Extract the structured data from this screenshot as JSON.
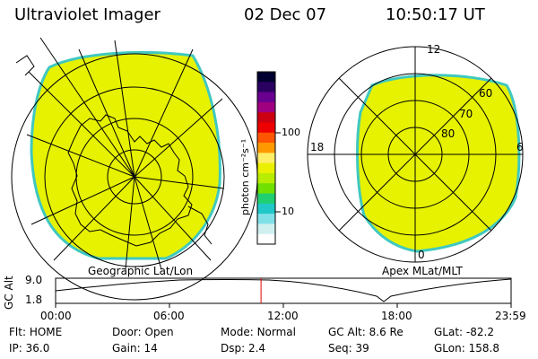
{
  "header": {
    "instrument": "Ultraviolet Imager",
    "date": "02 Dec 07",
    "time": "10:50:17 UT"
  },
  "left_panel": {
    "caption": "Geographic Lat/Lon"
  },
  "right_panel": {
    "caption": "Apex MLat/MLT",
    "clock_labels": {
      "top": "12",
      "left": "18",
      "right": "6",
      "bottom": "0"
    },
    "lat_labels": [
      "60",
      "70",
      "80"
    ]
  },
  "colorbar": {
    "unit_label": "photon cm⁻²s⁻¹",
    "tick_labels": [
      "100",
      "10"
    ],
    "colors": [
      "#000030",
      "#2a0060",
      "#6a0090",
      "#a00080",
      "#cc0010",
      "#ee0000",
      "#ff5500",
      "#ff9900",
      "#ffee66",
      "#eaf000",
      "#b8ec00",
      "#70e000",
      "#20d070",
      "#20c8c8",
      "#80e0e8",
      "#d0f0f0",
      "#ffffff"
    ]
  },
  "altitude_strip": {
    "ylabel": "GC Alt",
    "y_ticks": [
      "9.0",
      "1.8"
    ],
    "x_ticks": [
      "00:00",
      "06:00",
      "12:00",
      "18:00",
      "23:59"
    ],
    "current_time_fraction": 0.451
  },
  "status": {
    "row1": [
      {
        "key": "Flt:",
        "value": "HOME"
      },
      {
        "key": "Door:",
        "value": "Open"
      },
      {
        "key": "Mode:",
        "value": "Normal"
      },
      {
        "key": "GC Alt:",
        "value": "8.6 Re"
      },
      {
        "key": "GLat:",
        "value": "-82.2"
      }
    ],
    "row2": [
      {
        "key": "IP:",
        "value": "36.0"
      },
      {
        "key": "Gain:",
        "value": "14"
      },
      {
        "key": "Dsp:",
        "value": "2.4"
      },
      {
        "key": "Seq:",
        "value": "39"
      },
      {
        "key": "GLon:",
        "value": "158.8"
      }
    ]
  },
  "colors": {
    "emission": "#e6f200",
    "edge": "#40c8c0",
    "marker": "#e00000"
  }
}
